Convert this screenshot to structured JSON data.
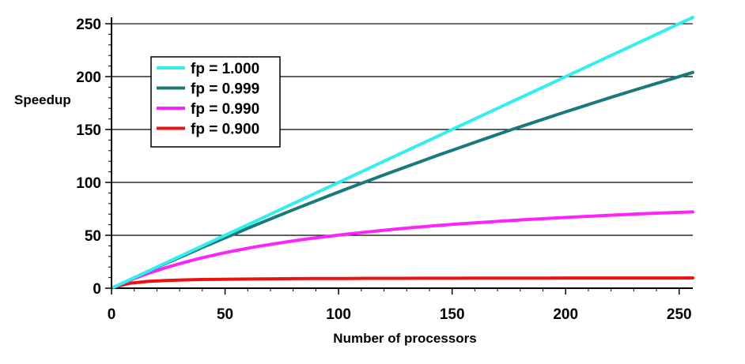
{
  "chart_data": {
    "type": "line",
    "xlabel": "Number of processors",
    "ylabel": "Speedup",
    "xlim": [
      0,
      256
    ],
    "ylim": [
      0,
      256
    ],
    "x_ticks": [
      0,
      50,
      100,
      150,
      200,
      250
    ],
    "y_ticks": [
      0,
      50,
      100,
      150,
      200,
      250
    ],
    "x_minor_step": 10,
    "y_minor_step": 10,
    "grid": "horizontal major",
    "legend_position": "top-left",
    "x": [
      1,
      8,
      16,
      24,
      32,
      40,
      48,
      56,
      64,
      72,
      80,
      88,
      96,
      104,
      112,
      120,
      128,
      136,
      144,
      152,
      160,
      168,
      176,
      184,
      192,
      200,
      208,
      216,
      224,
      232,
      240,
      248,
      256
    ],
    "series": [
      {
        "name": "fp = 1.000",
        "color": "#33eeee",
        "values": [
          1,
          8,
          16,
          24,
          32,
          40,
          48,
          56,
          64,
          72,
          80,
          88,
          96,
          104,
          112,
          120,
          128,
          136,
          144,
          152,
          160,
          168,
          176,
          184,
          192,
          200,
          208,
          216,
          224,
          232,
          240,
          248,
          256
        ]
      },
      {
        "name": "fp = 0.999",
        "color": "#1a7a7a",
        "values": [
          1,
          7.9,
          15.8,
          23.5,
          31,
          38.5,
          45.8,
          53,
          60.2,
          67.2,
          74.1,
          80.9,
          87.6,
          94.2,
          100.7,
          107.1,
          113.4,
          119.6,
          125.8,
          131.8,
          137.9,
          143.8,
          149.7,
          155.4,
          161.1,
          166.7,
          172.2,
          177.7,
          183.1,
          188.4,
          193.5,
          198.7,
          204
        ]
      },
      {
        "name": "fp = 0.990",
        "color": "#ff22ff",
        "values": [
          1,
          7.5,
          13.9,
          19.5,
          24.4,
          28.8,
          32.7,
          36.1,
          39.3,
          42.1,
          44.7,
          47.1,
          49.2,
          51.2,
          53,
          54.8,
          56.4,
          57.9,
          59.3,
          60.6,
          61.8,
          62.9,
          64,
          65,
          66,
          66.9,
          67.8,
          68.6,
          69.4,
          70.2,
          70.9,
          71.6,
          72.1
        ]
      },
      {
        "name": "fp = 0.900",
        "color": "#ee1111",
        "values": [
          1,
          4.7,
          6.4,
          7.3,
          7.8,
          8.2,
          8.4,
          8.6,
          8.8,
          8.9,
          9,
          9.1,
          9.2,
          9.2,
          9.3,
          9.3,
          9.3,
          9.4,
          9.4,
          9.4,
          9.5,
          9.5,
          9.5,
          9.5,
          9.5,
          9.6,
          9.6,
          9.6,
          9.6,
          9.6,
          9.6,
          9.6,
          9.7
        ]
      }
    ]
  }
}
